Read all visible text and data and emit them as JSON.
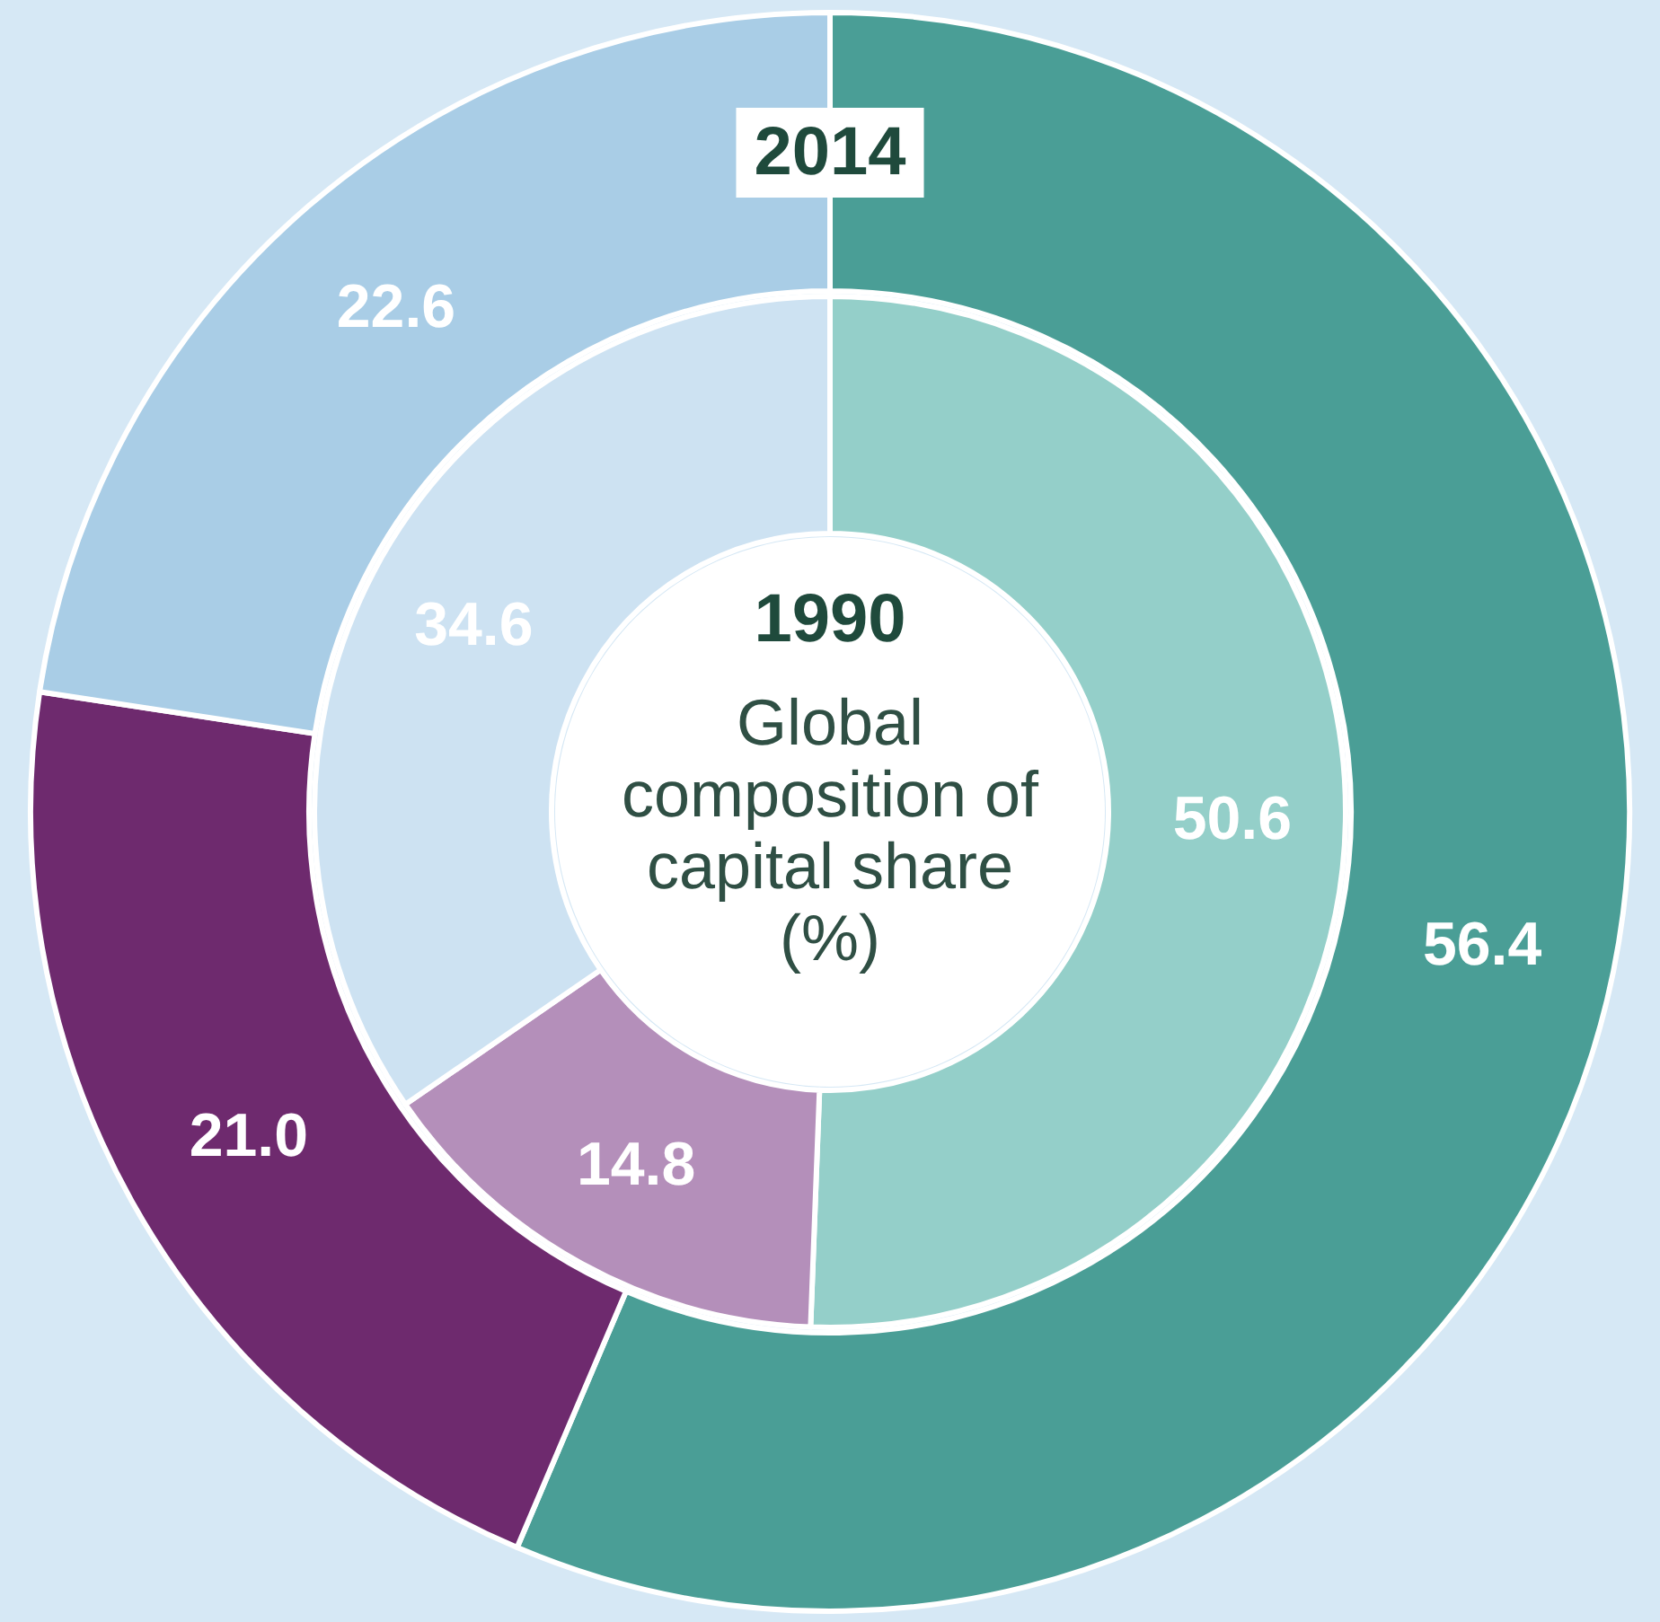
{
  "chart_data": {
    "type": "donut",
    "title": "Global\ncomposition of\ncapital share\n(%)",
    "categories": [
      null,
      null,
      null
    ],
    "series": [
      {
        "name": "2014",
        "values": [
          56.4,
          21.0,
          22.6
        ],
        "value_labels": [
          "56.4",
          "21.0",
          "22.6"
        ],
        "colors": [
          "#4a9e96",
          "#6e2a6e",
          "#a9cde6"
        ]
      },
      {
        "name": "1990",
        "values": [
          50.6,
          14.8,
          34.6
        ],
        "value_labels": [
          "50.6",
          "14.8",
          "34.6"
        ],
        "colors": [
          "#94cfc9",
          "#b48fba",
          "#cde2f2"
        ]
      }
    ]
  }
}
